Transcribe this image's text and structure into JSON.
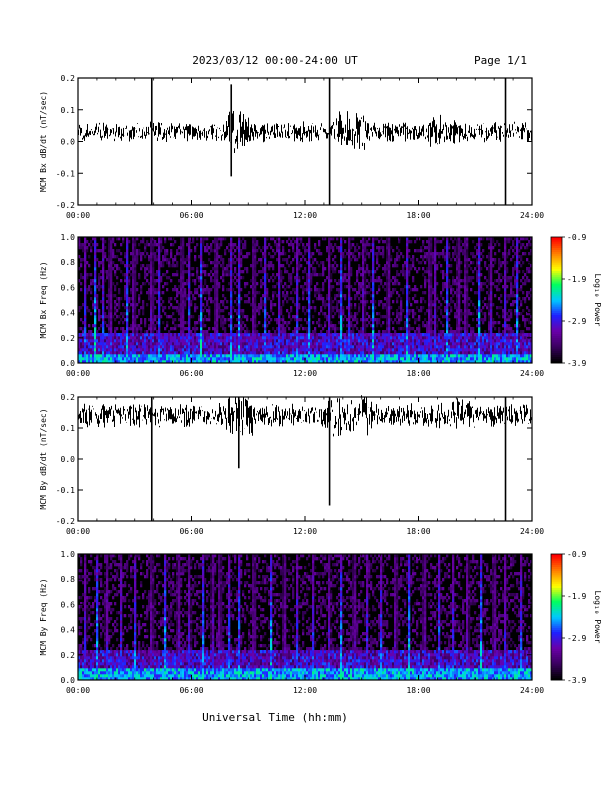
{
  "header": {
    "title": "2023/03/12  00:00-24:00 UT",
    "page": "Page 1/1"
  },
  "xlabel": "Universal Time (hh:mm)",
  "colors": {
    "trace": "#000000",
    "colormap": [
      "#000000",
      "#3a0060",
      "#6a00a8",
      "#2020ff",
      "#00c8ff",
      "#00ff60",
      "#ffff00",
      "#ff8000",
      "#ff0000"
    ]
  },
  "chart_data": [
    {
      "id": "bx_trace",
      "type": "line",
      "ylabel": "MCM Bx dB/dt (nT/sec)",
      "x_ticks": [
        "00:00",
        "06:00",
        "12:00",
        "18:00",
        "24:00"
      ],
      "xlim": [
        0,
        24
      ],
      "ylim": [
        -0.2,
        0.2
      ],
      "y_ticks": [
        "-0.2",
        "-0.1",
        "0.0",
        "0.1",
        "0.2"
      ],
      "y_tick_values": [
        -0.2,
        -0.1,
        0.0,
        0.1,
        0.2
      ],
      "baseline": 0.03,
      "noise_amplitude": 0.03,
      "spikes": [
        {
          "x": 3.9,
          "min": -0.2,
          "max": 0.2
        },
        {
          "x": 13.3,
          "min": -0.2,
          "max": 0.2
        },
        {
          "x": 22.6,
          "min": -0.2,
          "max": 0.2
        },
        {
          "x": 8.1,
          "min": -0.11,
          "max": 0.18
        }
      ],
      "active_windows": [
        {
          "start": 7.9,
          "end": 9.0,
          "amplitude": 0.07
        },
        {
          "start": 13.6,
          "end": 15.2,
          "amplitude": 0.06
        },
        {
          "start": 18.5,
          "end": 20.0,
          "amplitude": 0.05
        }
      ]
    },
    {
      "id": "bx_spectrogram",
      "type": "heatmap",
      "ylabel": "MCM Bx Freq (Hz)",
      "x_ticks": [
        "00:00",
        "06:00",
        "12:00",
        "18:00",
        "24:00"
      ],
      "xlim": [
        0,
        24
      ],
      "ylim": [
        0,
        1.0
      ],
      "y_ticks": [
        "0.0",
        "0.2",
        "0.4",
        "0.6",
        "0.8",
        "1.0"
      ],
      "y_tick_values": [
        0,
        0.2,
        0.4,
        0.6,
        0.8,
        1.0
      ],
      "colorbar": {
        "label": "Log₁₀ Power",
        "ticks": [
          "-0.9",
          "-1.9",
          "-2.9",
          "-3.9"
        ],
        "values": [
          -0.9,
          -1.9,
          -2.9,
          -3.9
        ],
        "range": [
          -3.9,
          -0.9
        ]
      },
      "stripes": [
        0.35,
        0.9,
        1.3,
        1.7,
        2.6,
        2.95,
        3.9,
        4.3,
        5.5,
        5.85,
        6.5,
        7.3,
        8.1,
        8.5,
        9.3,
        9.9,
        10.6,
        11.6,
        12.2,
        13.3,
        13.9,
        14.3,
        15.1,
        15.6,
        16.4,
        17.4,
        18.6,
        18.9,
        19.5,
        20.1,
        20.5,
        21.2,
        21.8,
        22.6,
        23.2
      ],
      "band_low_hz": 0.08
    },
    {
      "id": "by_trace",
      "type": "line",
      "ylabel": "MCM By dB/dt (nT/sec)",
      "x_ticks": [
        "00:00",
        "06:00",
        "12:00",
        "18:00",
        "24:00"
      ],
      "xlim": [
        0,
        24
      ],
      "ylim": [
        -0.2,
        0.2
      ],
      "y_ticks": [
        "-0.2",
        "-0.1",
        "0.0",
        "0.1",
        "0.2"
      ],
      "y_tick_values": [
        -0.2,
        -0.1,
        0.0,
        0.1,
        0.2
      ],
      "baseline": 0.14,
      "noise_amplitude": 0.035,
      "spikes": [
        {
          "x": 3.9,
          "min": -0.2,
          "max": 0.2
        },
        {
          "x": 22.6,
          "min": -0.2,
          "max": 0.2
        },
        {
          "x": 13.3,
          "min": -0.15,
          "max": 0.2
        },
        {
          "x": 8.5,
          "min": -0.03,
          "max": 0.2
        }
      ],
      "active_windows": [
        {
          "start": 7.8,
          "end": 9.3,
          "amplitude": 0.08
        },
        {
          "start": 12.8,
          "end": 15.5,
          "amplitude": 0.06
        },
        {
          "start": 19.0,
          "end": 21.0,
          "amplitude": 0.05
        }
      ]
    },
    {
      "id": "by_spectrogram",
      "type": "heatmap",
      "ylabel": "MCM By Freq (Hz)",
      "x_ticks": [
        "00:00",
        "06:00",
        "12:00",
        "18:00",
        "24:00"
      ],
      "xlim": [
        0,
        24
      ],
      "ylim": [
        0,
        1.0
      ],
      "y_ticks": [
        "0.0",
        "0.2",
        "0.4",
        "0.6",
        "0.8",
        "1.0"
      ],
      "y_tick_values": [
        0,
        0.2,
        0.4,
        0.6,
        0.8,
        1.0
      ],
      "colorbar": {
        "label": "Log₁₀ Power",
        "ticks": [
          "-0.9",
          "-1.9",
          "-2.9",
          "-3.9"
        ],
        "values": [
          -0.9,
          -1.9,
          -2.9,
          -3.9
        ],
        "range": [
          -3.9,
          -0.9
        ]
      },
      "stripes": [
        0.4,
        1.0,
        1.5,
        2.3,
        3.0,
        3.9,
        4.6,
        5.3,
        5.9,
        6.6,
        7.1,
        7.5,
        8.0,
        8.5,
        9.3,
        10.2,
        10.9,
        11.6,
        12.4,
        13.3,
        13.9,
        14.6,
        15.3,
        16.0,
        16.8,
        17.5,
        18.3,
        19.1,
        19.8,
        20.6,
        21.3,
        22.0,
        22.6,
        23.4
      ],
      "band_low_hz": 0.1
    }
  ]
}
